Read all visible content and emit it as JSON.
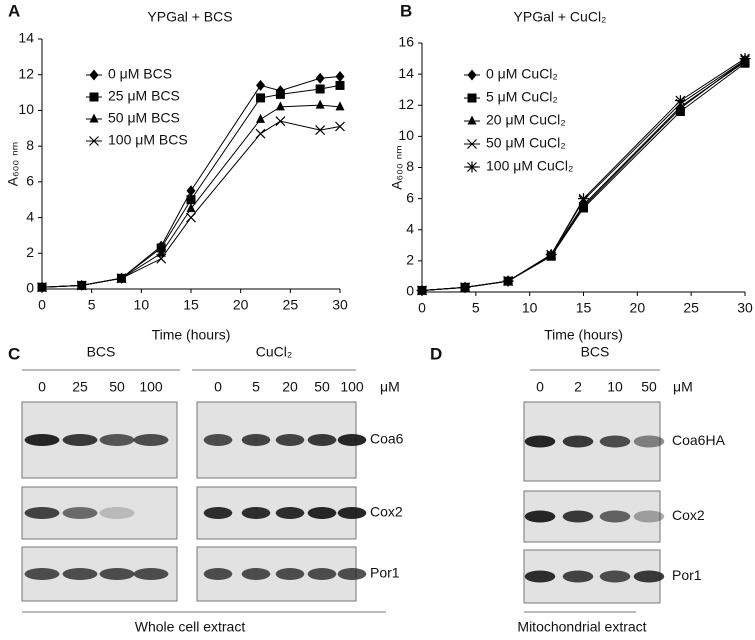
{
  "chart_data": [
    {
      "type": "line",
      "panel": "A",
      "title": "YPGal + BCS",
      "x_label": "Time (hours)",
      "y_label": "A₆₀₀ ₙₘ",
      "x": [
        0,
        4,
        8,
        12,
        15,
        22,
        24,
        28,
        30
      ],
      "xlim": [
        0,
        30
      ],
      "xticks": [
        0,
        5,
        10,
        15,
        20,
        25,
        30
      ],
      "ylim": [
        0,
        14
      ],
      "yticks": [
        0,
        2,
        4,
        6,
        8,
        10,
        12,
        14
      ],
      "series": [
        {
          "name": "0 μM BCS",
          "color": "#000000",
          "marker": "diamond",
          "values": [
            0.1,
            0.2,
            0.6,
            2.4,
            5.5,
            11.4,
            11.1,
            11.8,
            11.9
          ]
        },
        {
          "name": "25 μM BCS",
          "color": "#000000",
          "marker": "square",
          "values": [
            0.1,
            0.2,
            0.6,
            2.3,
            5.0,
            10.7,
            10.9,
            11.2,
            11.4
          ]
        },
        {
          "name": "50 μM BCS",
          "color": "#000000",
          "marker": "triangle",
          "values": [
            0.1,
            0.2,
            0.6,
            2.0,
            4.5,
            9.5,
            10.2,
            10.3,
            10.2
          ]
        },
        {
          "name": "100 μM BCS",
          "color": "#000000",
          "marker": "x",
          "values": [
            0.1,
            0.2,
            0.6,
            1.7,
            4.0,
            8.7,
            9.4,
            8.9,
            9.1
          ]
        }
      ]
    },
    {
      "type": "line",
      "panel": "B",
      "title": "YPGal + CuCl₂",
      "x_label": "Time (hours)",
      "y_label": "A₆₀₀ ₙₘ",
      "x": [
        0,
        4,
        8,
        12,
        15,
        24,
        30
      ],
      "xlim": [
        0,
        30
      ],
      "xticks": [
        0,
        5,
        10,
        15,
        20,
        25,
        30
      ],
      "ylim": [
        0,
        16
      ],
      "yticks": [
        0,
        2,
        4,
        6,
        8,
        10,
        12,
        14,
        16
      ],
      "series": [
        {
          "name": "0 μM CuCl₂",
          "color": "#000000",
          "marker": "diamond",
          "values": [
            0.1,
            0.3,
            0.7,
            2.4,
            5.5,
            11.8,
            14.9
          ]
        },
        {
          "name": "5 μM CuCl₂",
          "color": "#000000",
          "marker": "square",
          "values": [
            0.1,
            0.3,
            0.7,
            2.3,
            5.4,
            11.6,
            14.7
          ]
        },
        {
          "name": "20 μM CuCl₂",
          "color": "#000000",
          "marker": "triangle",
          "values": [
            0.1,
            0.3,
            0.7,
            2.4,
            5.6,
            11.9,
            14.8
          ]
        },
        {
          "name": "50 μM CuCl₂",
          "color": "#000000",
          "marker": "x",
          "values": [
            0.1,
            0.3,
            0.7,
            2.4,
            5.9,
            12.1,
            14.9
          ]
        },
        {
          "name": "100 μM CuCl₂",
          "color": "#000000",
          "marker": "star",
          "values": [
            0.1,
            0.3,
            0.7,
            2.4,
            6.0,
            12.3,
            15.0
          ]
        }
      ]
    }
  ],
  "blots": [
    {
      "panel": "C",
      "unit": "μM",
      "rows": [
        "Coa6",
        "Cox2",
        "Por1"
      ],
      "footer": "Whole cell extract",
      "groups": [
        {
          "title": "BCS",
          "lanes": [
            "0",
            "25",
            "50",
            "100"
          ]
        },
        {
          "title": "CuCl₂",
          "lanes": [
            "0",
            "5",
            "20",
            "50",
            "100"
          ]
        }
      ]
    },
    {
      "panel": "D",
      "unit": "μM",
      "rows": [
        "Coa6HA",
        "Cox2",
        "Por1"
      ],
      "footer": "Mitochondrial extract",
      "groups": [
        {
          "title": "BCS",
          "lanes": [
            "0",
            "2",
            "10",
            "50"
          ]
        }
      ]
    }
  ]
}
